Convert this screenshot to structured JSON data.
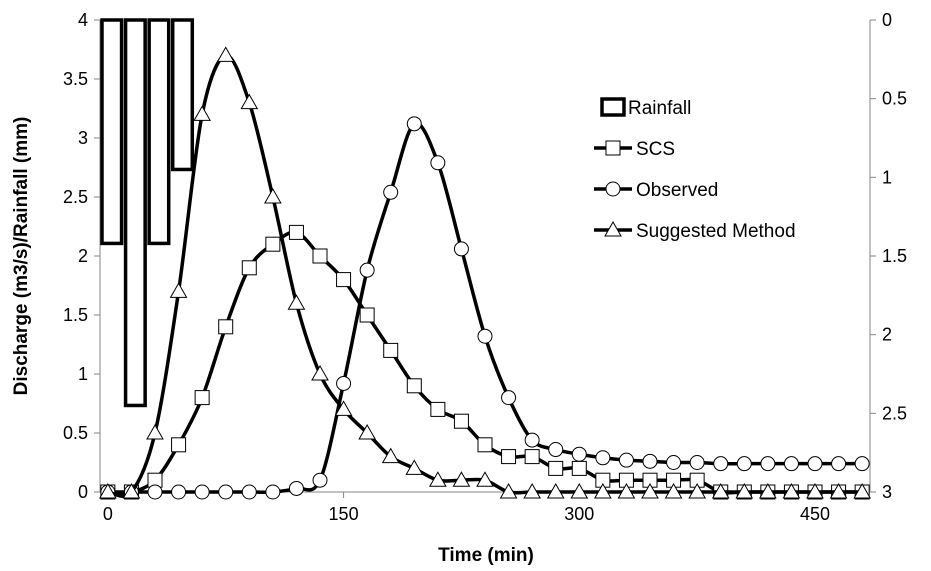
{
  "chart_data": {
    "type": "line",
    "title": "",
    "xlabel": "Time (min)",
    "ylabel": "Discharge (m3/s)/Rainfall (mm)",
    "xlim": [
      -5,
      485
    ],
    "ylim": [
      0,
      4
    ],
    "y2lim": [
      0,
      3
    ],
    "y2_inverted": true,
    "grid": false,
    "legend_position": "right",
    "x_ticks": [
      "0",
      "150",
      "300",
      "450"
    ],
    "x_tick_values": [
      0,
      150,
      300,
      450
    ],
    "y_ticks": [
      "0",
      "0.5",
      "1",
      "1.5",
      "2",
      "2.5",
      "3",
      "3.5",
      "4"
    ],
    "y_tick_values": [
      0,
      0.5,
      1,
      1.5,
      2,
      2.5,
      3,
      3.5,
      4
    ],
    "y2_ticks": [
      "0",
      "0.5",
      "1",
      "1.5",
      "2",
      "2.5",
      "3"
    ],
    "y2_tick_values": [
      0,
      0.5,
      1,
      1.5,
      2,
      2.5,
      3
    ],
    "colors": {
      "line": "#000000",
      "marker_fill": "#ffffff",
      "background": "#ffffff"
    },
    "rainfall": {
      "name": "Rainfall",
      "axis": "secondary",
      "bars": [
        {
          "x0": -5,
          "x1": 10,
          "value": 1.42
        },
        {
          "x0": 10,
          "x1": 25,
          "value": 2.45
        },
        {
          "x0": 25,
          "x1": 40,
          "value": 1.42
        },
        {
          "x0": 40,
          "x1": 55,
          "value": 0.95
        }
      ]
    },
    "series": [
      {
        "name": "SCS",
        "marker": "square",
        "x": [
          0,
          15,
          30,
          45,
          60,
          75,
          90,
          105,
          120,
          135,
          150,
          165,
          180,
          195,
          210,
          225,
          240,
          255,
          270,
          285,
          300,
          315,
          330,
          345,
          360,
          375,
          390,
          405,
          420,
          435,
          450,
          465,
          480
        ],
        "y": [
          0,
          0,
          0.1,
          0.4,
          0.8,
          1.4,
          1.9,
          2.1,
          2.2,
          2.0,
          1.8,
          1.5,
          1.2,
          0.9,
          0.7,
          0.6,
          0.4,
          0.3,
          0.3,
          0.2,
          0.2,
          0.1,
          0.1,
          0.1,
          0.1,
          0.1,
          0,
          0,
          0,
          0,
          0,
          0,
          0
        ]
      },
      {
        "name": "Observed",
        "marker": "circle",
        "x": [
          0,
          15,
          30,
          45,
          60,
          75,
          90,
          105,
          120,
          135,
          150,
          165,
          180,
          195,
          210,
          225,
          240,
          255,
          270,
          285,
          300,
          315,
          330,
          345,
          360,
          375,
          390,
          405,
          420,
          435,
          450,
          465,
          480
        ],
        "y": [
          0,
          0,
          0,
          0,
          0,
          0,
          0,
          0,
          0.03,
          0.1,
          0.92,
          1.88,
          2.54,
          3.12,
          2.79,
          2.06,
          1.32,
          0.8,
          0.44,
          0.36,
          0.32,
          0.29,
          0.27,
          0.26,
          0.25,
          0.25,
          0.24,
          0.24,
          0.24,
          0.24,
          0.24,
          0.24,
          0.24
        ]
      },
      {
        "name": "Suggested Method",
        "marker": "triangle",
        "x": [
          0,
          15,
          30,
          45,
          60,
          75,
          90,
          105,
          120,
          135,
          150,
          165,
          180,
          195,
          210,
          225,
          240,
          255,
          270,
          285,
          300,
          315,
          330,
          345,
          360,
          375,
          390,
          405,
          420,
          435,
          450,
          465,
          480
        ],
        "y": [
          0,
          0,
          0.5,
          1.7,
          3.2,
          3.7,
          3.3,
          2.5,
          1.6,
          1.0,
          0.7,
          0.5,
          0.3,
          0.2,
          0.1,
          0.1,
          0.1,
          0,
          0,
          0,
          0,
          0,
          0,
          0,
          0,
          0,
          0,
          0,
          0,
          0,
          0,
          0,
          0
        ]
      }
    ]
  }
}
